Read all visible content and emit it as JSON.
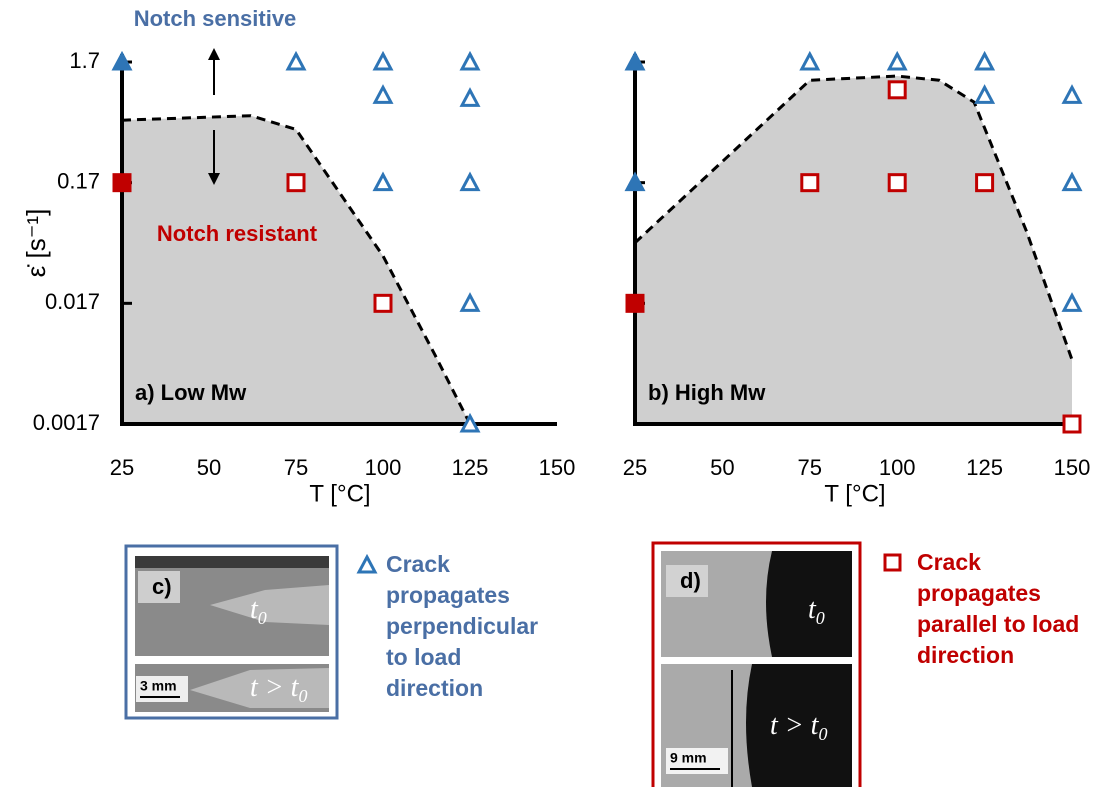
{
  "chart_data": [
    {
      "type": "scatter",
      "title": "a) Low Mw",
      "xlabel": "T [°C]",
      "ylabel": "ε̇ [s⁻¹]",
      "annotations": [
        "Notch sensitive",
        "Notch resistant"
      ],
      "xlim": [
        25,
        150
      ],
      "xticks": [
        25,
        50,
        75,
        100,
        125,
        150
      ],
      "ylim": [
        0.0017,
        1.7
      ],
      "yticks": [
        0.0017,
        0.017,
        0.17,
        1.7
      ],
      "log_y": true,
      "boundary": {
        "x": [
          25,
          62,
          75,
          100,
          115,
          125
        ],
        "values": [
          0.56,
          0.61,
          0.47,
          0.042,
          0.0063,
          0.0017
        ],
        "color": "#000000"
      },
      "series": [
        {
          "name": "Crack propagates perpendicular to load direction",
          "marker": "triangle",
          "color": "#2e75b6",
          "x": [
            25,
            75,
            100,
            125,
            100,
            125,
            100,
            125,
            125,
            125
          ],
          "values": [
            1.7,
            1.7,
            1.7,
            1.7,
            0.9,
            0.85,
            0.17,
            0.17,
            0.017,
            0.0017
          ],
          "filled": [
            true,
            false,
            false,
            false,
            false,
            false,
            false,
            false,
            false,
            false
          ]
        },
        {
          "name": "Crack propagates parallel to load direction",
          "marker": "square",
          "color": "#c00000",
          "x": [
            25,
            75,
            100
          ],
          "values": [
            0.17,
            0.17,
            0.017
          ],
          "filled": [
            true,
            false,
            false
          ]
        }
      ]
    },
    {
      "type": "scatter",
      "title": "b) High Mw",
      "xlabel": "T [°C]",
      "xlim": [
        25,
        150
      ],
      "xticks": [
        25,
        50,
        75,
        100,
        125,
        150
      ],
      "ylim": [
        0.0017,
        1.7
      ],
      "yticks": [
        0.0017,
        0.017,
        0.17,
        1.7
      ],
      "log_y": true,
      "boundary": {
        "x": [
          25,
          75,
          100,
          112,
          122,
          137,
          150
        ],
        "values": [
          0.054,
          1.2,
          1.3,
          1.2,
          0.79,
          0.067,
          0.0058
        ],
        "color": "#000000"
      },
      "series": [
        {
          "marker": "triangle",
          "color": "#2e75b6",
          "x": [
            25,
            25,
            75,
            100,
            125,
            125,
            150,
            150,
            150
          ],
          "values": [
            1.7,
            0.17,
            1.7,
            1.7,
            1.7,
            0.9,
            0.9,
            0.17,
            0.017
          ],
          "filled": [
            true,
            true,
            false,
            false,
            false,
            false,
            false,
            false,
            false
          ]
        },
        {
          "marker": "square",
          "color": "#c00000",
          "x": [
            25,
            100,
            75,
            100,
            125,
            150
          ],
          "values": [
            0.017,
            1.0,
            0.17,
            0.17,
            0.17,
            0.0017
          ],
          "filled": [
            true,
            false,
            false,
            false,
            false,
            false
          ]
        }
      ]
    }
  ],
  "panels": [
    {
      "label": "c)",
      "t_start": [
        "t",
        "0"
      ],
      "t_later": [
        "t > t",
        "0"
      ],
      "scale": "3 mm"
    },
    {
      "label": "d)",
      "t_start": [
        "t",
        "0"
      ],
      "t_later": [
        "t > t",
        "0"
      ],
      "scale": "9 mm"
    }
  ]
}
